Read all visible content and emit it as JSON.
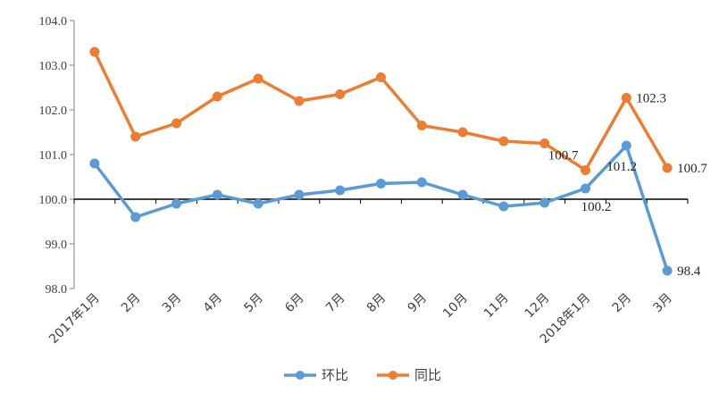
{
  "chart_data": {
    "type": "line",
    "categories": [
      "2017年1月",
      "2月",
      "3月",
      "4月",
      "5月",
      "6月",
      "7月",
      "8月",
      "9月",
      "10月",
      "11月",
      "12月",
      "2018年1月",
      "2月",
      "3月"
    ],
    "series": [
      {
        "name": "环比",
        "color": "#5B9BD5",
        "values": [
          100.8,
          99.6,
          99.9,
          100.1,
          99.9,
          100.1,
          100.2,
          100.35,
          100.38,
          100.1,
          99.84,
          99.92,
          100.24,
          101.2,
          98.4
        ]
      },
      {
        "name": "同比",
        "color": "#ED7D31",
        "values": [
          103.3,
          101.4,
          101.7,
          102.3,
          102.7,
          102.2,
          102.35,
          102.73,
          101.65,
          101.5,
          101.3,
          101.25,
          100.65,
          102.27,
          100.7
        ]
      }
    ],
    "yticks": [
      "98.0",
      "99.0",
      "100.0",
      "101.0",
      "102.0",
      "103.0",
      "104.0"
    ],
    "ylim": [
      98,
      104
    ],
    "baseline": 100,
    "labels": [
      {
        "series": 1,
        "index": 12,
        "text": "100.7",
        "pos": "above-left"
      },
      {
        "series": 0,
        "index": 12,
        "text": "100.2",
        "pos": "below"
      },
      {
        "series": 0,
        "index": 13,
        "text": "101.2",
        "pos": "below-left"
      },
      {
        "series": 1,
        "index": 13,
        "text": "102.3",
        "pos": "right"
      },
      {
        "series": 1,
        "index": 14,
        "text": "100.7",
        "pos": "right"
      },
      {
        "series": 0,
        "index": 14,
        "text": "98.4",
        "pos": "right"
      }
    ],
    "legend_position": "bottom"
  }
}
